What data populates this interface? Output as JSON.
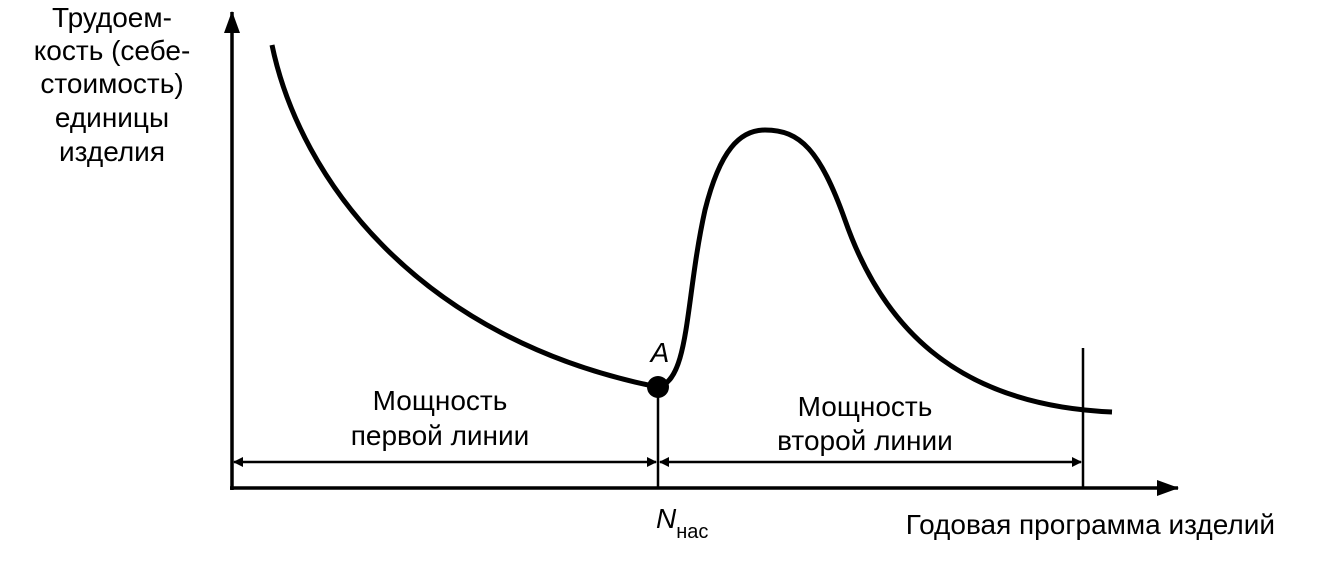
{
  "axes": {
    "y_label": [
      "Трудоем-",
      "кость (себе-",
      "стоимость)",
      "единицы",
      "изделия"
    ],
    "x_label": "Годовая программа изделий"
  },
  "point": {
    "label": "A"
  },
  "marker": {
    "symbol": "N",
    "subscript": "нас"
  },
  "ranges": [
    {
      "label": [
        "Мощность",
        "первой линии"
      ]
    },
    {
      "label": [
        "Мощность",
        "второй линии"
      ]
    }
  ]
}
